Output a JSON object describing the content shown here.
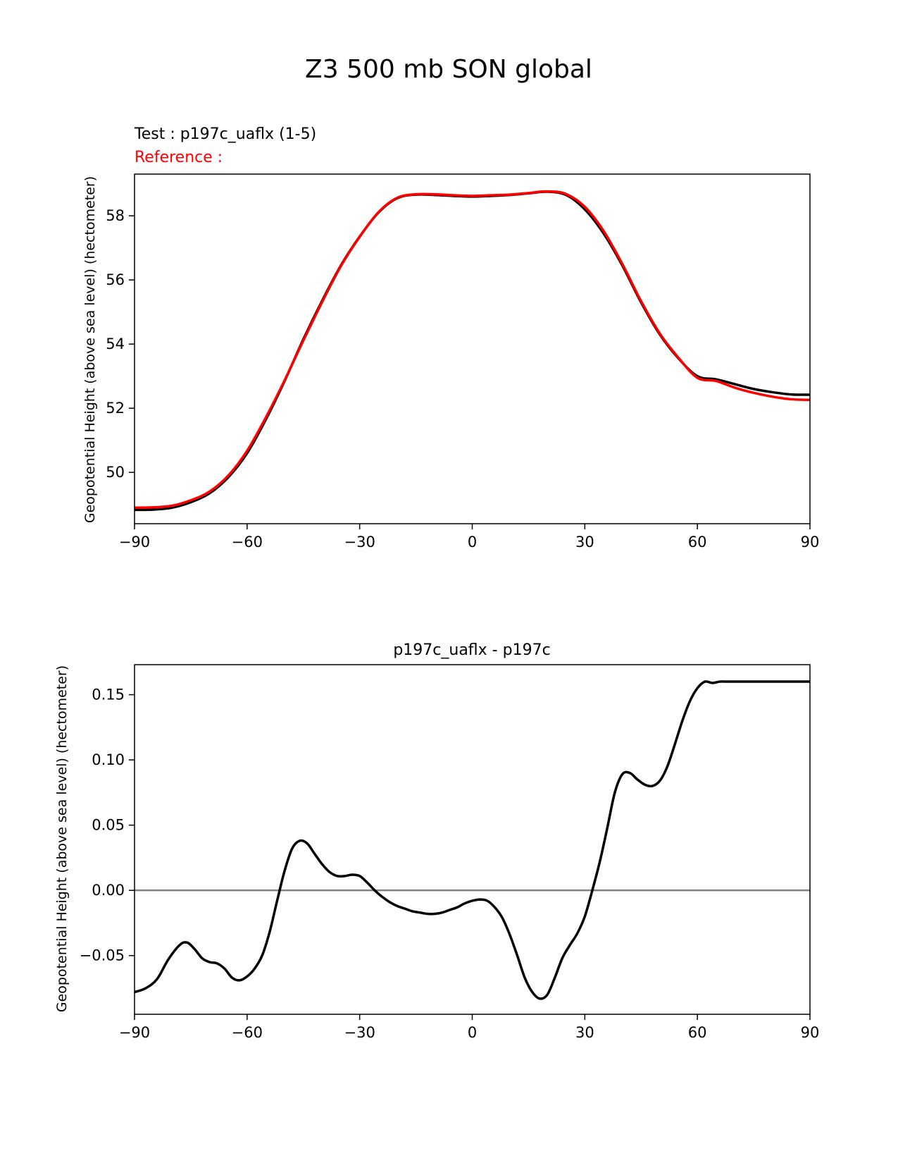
{
  "figure": {
    "title": "Z3 500 mb SON global"
  },
  "colors": {
    "test": "#000000",
    "reference": "#ff0000",
    "zero_line": "#808080",
    "axes": "#000000"
  },
  "chart_data": [
    {
      "type": "line",
      "title": "",
      "test_label": "Test : p197c_uaflx (1-5)",
      "reference_label": "Reference :",
      "xlabel": "",
      "ylabel": "Geopotential Height (above sea level) (hectometer)",
      "xlim": [
        -90,
        90
      ],
      "ylim": [
        48.4,
        59.3
      ],
      "xticks": [
        -90,
        -60,
        -30,
        0,
        30,
        60,
        90
      ],
      "xtick_labels": [
        "−90",
        "−60",
        "−30",
        "0",
        "30",
        "60",
        "90"
      ],
      "yticks": [
        50,
        52,
        54,
        56,
        58
      ],
      "ytick_labels": [
        "50",
        "52",
        "54",
        "56",
        "58"
      ],
      "series": [
        {
          "name": "test",
          "x": [
            -90,
            -85,
            -80,
            -75,
            -70,
            -65,
            -60,
            -55,
            -50,
            -45,
            -40,
            -35,
            -30,
            -25,
            -20,
            -15,
            -10,
            -5,
            0,
            5,
            10,
            15,
            20,
            25,
            30,
            35,
            40,
            45,
            50,
            55,
            60,
            65,
            70,
            75,
            80,
            85,
            90
          ],
          "y": [
            48.83,
            48.84,
            48.9,
            49.07,
            49.35,
            49.85,
            50.6,
            51.65,
            52.85,
            54.15,
            55.35,
            56.45,
            57.35,
            58.1,
            58.55,
            58.66,
            58.65,
            58.62,
            58.6,
            58.62,
            58.65,
            58.7,
            58.75,
            58.65,
            58.2,
            57.45,
            56.45,
            55.3,
            54.3,
            53.55,
            53.0,
            52.9,
            52.75,
            52.6,
            52.5,
            52.43,
            52.42
          ]
        },
        {
          "name": "reference",
          "x": [
            -90,
            -85,
            -80,
            -75,
            -70,
            -65,
            -60,
            -55,
            -50,
            -45,
            -40,
            -35,
            -30,
            -25,
            -20,
            -15,
            -10,
            -5,
            0,
            5,
            10,
            15,
            20,
            25,
            30,
            35,
            40,
            45,
            50,
            55,
            60,
            65,
            70,
            75,
            80,
            85,
            90
          ],
          "y": [
            48.9,
            48.91,
            48.96,
            49.13,
            49.4,
            49.9,
            50.67,
            51.71,
            52.87,
            54.11,
            55.31,
            56.43,
            57.34,
            58.11,
            58.56,
            58.67,
            58.67,
            58.64,
            58.62,
            58.64,
            58.66,
            58.71,
            58.76,
            58.68,
            58.28,
            57.53,
            56.5,
            55.34,
            54.33,
            53.57,
            52.95,
            52.85,
            52.64,
            52.48,
            52.36,
            52.28,
            52.26
          ]
        }
      ]
    },
    {
      "type": "line",
      "title": "p197c_uaflx - p197c",
      "xlabel": "",
      "ylabel": "Geopotential Height (above sea level) (hectometer)",
      "xlim": [
        -90,
        90
      ],
      "ylim": [
        -0.095,
        0.173
      ],
      "xticks": [
        -90,
        -60,
        -30,
        0,
        30,
        60,
        90
      ],
      "xtick_labels": [
        "−90",
        "−60",
        "−30",
        "0",
        "30",
        "60",
        "90"
      ],
      "yticks": [
        -0.05,
        0.0,
        0.05,
        0.1,
        0.15
      ],
      "ytick_labels": [
        "−0.05",
        "0.00",
        "0.05",
        "0.10",
        "0.15"
      ],
      "zero_line": 0,
      "series": [
        {
          "name": "difference",
          "x": [
            -90,
            -87,
            -84,
            -81,
            -78,
            -76,
            -74,
            -72,
            -70,
            -68,
            -66,
            -64,
            -62,
            -60,
            -58,
            -56,
            -54,
            -52,
            -50,
            -48,
            -46,
            -44,
            -42,
            -40,
            -38,
            -36,
            -34,
            -32,
            -30,
            -28,
            -26,
            -24,
            -22,
            -20,
            -18,
            -16,
            -14,
            -12,
            -10,
            -8,
            -6,
            -4,
            -2,
            0,
            2,
            4,
            6,
            8,
            10,
            12,
            14,
            16,
            18,
            20,
            22,
            24,
            26,
            28,
            30,
            32,
            34,
            36,
            38,
            40,
            42,
            44,
            46,
            48,
            50,
            52,
            54,
            56,
            58,
            60,
            62,
            64,
            66,
            68,
            70,
            72,
            74,
            76,
            78,
            80,
            82,
            84,
            86,
            88,
            90
          ],
          "y": [
            -0.078,
            -0.075,
            -0.068,
            -0.053,
            -0.042,
            -0.04,
            -0.045,
            -0.052,
            -0.055,
            -0.056,
            -0.06,
            -0.067,
            -0.069,
            -0.066,
            -0.06,
            -0.05,
            -0.032,
            -0.008,
            0.015,
            0.032,
            0.038,
            0.036,
            0.028,
            0.02,
            0.014,
            0.011,
            0.011,
            0.012,
            0.011,
            0.006,
            0.0,
            -0.005,
            -0.009,
            -0.012,
            -0.014,
            -0.016,
            -0.017,
            -0.018,
            -0.018,
            -0.017,
            -0.015,
            -0.013,
            -0.01,
            -0.008,
            -0.007,
            -0.008,
            -0.013,
            -0.021,
            -0.034,
            -0.05,
            -0.067,
            -0.078,
            -0.083,
            -0.08,
            -0.067,
            -0.052,
            -0.042,
            -0.033,
            -0.02,
            0.0,
            0.022,
            0.048,
            0.075,
            0.089,
            0.09,
            0.085,
            0.081,
            0.08,
            0.084,
            0.095,
            0.112,
            0.13,
            0.145,
            0.155,
            0.16,
            0.159,
            0.16,
            0.16,
            0.16,
            0.16,
            0.16,
            0.16,
            0.16,
            0.16,
            0.16,
            0.16,
            0.16,
            0.16,
            0.16
          ]
        }
      ]
    }
  ]
}
